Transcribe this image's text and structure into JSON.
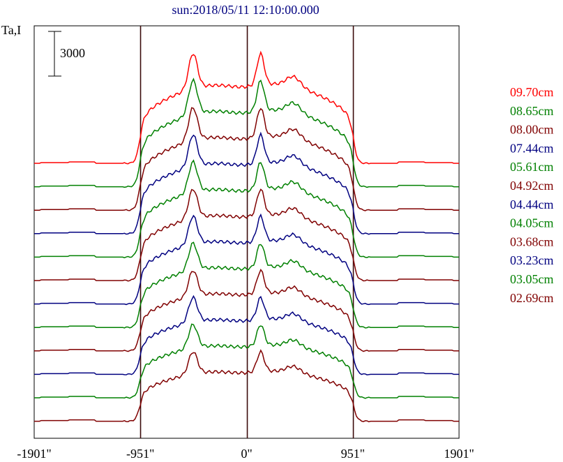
{
  "chart_data": {
    "type": "line",
    "title": "sun:2018/05/11 12:10:00.000",
    "ylabel": "Ta,I",
    "scale_bar_label": "3000",
    "x_ticks": [
      {
        "value": -1901,
        "label": "-1901\""
      },
      {
        "value": -951,
        "label": "-951\""
      },
      {
        "value": 0,
        "label": "0\""
      },
      {
        "value": 951,
        "label": "951\""
      },
      {
        "value": 1901,
        "label": "1901\""
      }
    ],
    "vlines": [
      -951,
      0,
      951
    ],
    "xlim": [
      -1901,
      1901
    ],
    "series": [
      {
        "name": "09.70cm",
        "color": "#ff0000"
      },
      {
        "name": "08.65cm",
        "color": "#008000"
      },
      {
        "name": "08.00cm",
        "color": "#800000"
      },
      {
        "name": "07.44cm",
        "color": "#000080"
      },
      {
        "name": "05.61cm",
        "color": "#008000"
      },
      {
        "name": "04.92cm",
        "color": "#800000"
      },
      {
        "name": "04.44cm",
        "color": "#000080"
      },
      {
        "name": "04.05cm",
        "color": "#008000"
      },
      {
        "name": "03.68cm",
        "color": "#800000"
      },
      {
        "name": "03.23cm",
        "color": "#000080"
      },
      {
        "name": "03.05cm",
        "color": "#008000"
      },
      {
        "name": "02.69cm",
        "color": "#800000"
      }
    ]
  }
}
